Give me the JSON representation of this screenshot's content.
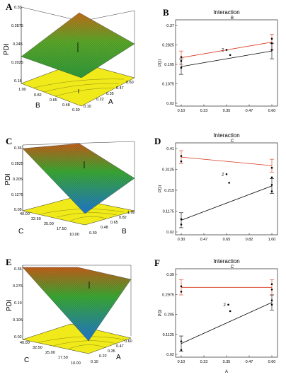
{
  "colors": {
    "surface_high": "#c2701a",
    "surface_mid": "#3aa833",
    "surface_low": "#1f78d0",
    "floor": "#f0ea1a",
    "red_line": "#d9381e",
    "black_line": "#000000"
  },
  "panels3d": [
    {
      "letter": "A",
      "zlabel": "PDI",
      "xlabel": "A",
      "ylabel": "B",
      "zticks": [
        "0.33",
        "0.2875",
        "0.245",
        "0.2025",
        "0.16"
      ],
      "xticks": [
        "0.60",
        "0.47",
        "0.35",
        "0.22",
        "0.10"
      ],
      "yticks": [
        "1.00",
        "0.82",
        "0.65",
        "0.48",
        "0.30"
      ]
    },
    {
      "letter": "C",
      "zlabel": "PDI",
      "xlabel": "B",
      "ylabel": "C",
      "zticks": [
        "0.36",
        "0.2825",
        "0.205",
        "0.1275",
        "0.05"
      ],
      "xticks": [
        "1.00",
        "0.82",
        "0.65",
        "0.48",
        "0.30"
      ],
      "yticks": [
        "40.00",
        "32.50",
        "25.00",
        "17.50",
        "10.00"
      ]
    },
    {
      "letter": "E",
      "zlabel": "PDI",
      "xlabel": "A",
      "ylabel": "C",
      "zticks": [
        "0.36",
        "0.275",
        "0.19",
        "0.105",
        "0.02"
      ],
      "xticks": [
        "0.60",
        "0.47",
        "0.35",
        "0.22",
        "0.10"
      ],
      "yticks": [
        "40.00",
        "32.50",
        "25.00",
        "17.50",
        "10.00"
      ]
    }
  ],
  "chart_data": [
    {
      "panel": "B",
      "type": "line",
      "title": "Interaction",
      "subtitle": "B",
      "ylabel": "PDI",
      "xlabel": "",
      "x_ticks": [
        "0.10",
        "0.23",
        "0.35",
        "0.47",
        "0.60"
      ],
      "y_ticks": [
        "0.02",
        "0.1075",
        "0.195",
        "0.2825",
        "0.37"
      ],
      "xlim": [
        0.1,
        0.6
      ],
      "ylim": [
        0.02,
        0.37
      ],
      "annotation": "2",
      "series": [
        {
          "color": "#d9381e",
          "x": [
            0.1,
            0.6
          ],
          "y": [
            0.225,
            0.295
          ],
          "err": [
            0.03,
            0.035
          ]
        },
        {
          "color": "#000000",
          "x": [
            0.1,
            0.6
          ],
          "y": [
            0.185,
            0.255
          ],
          "err": [
            0.035,
            0.035
          ]
        }
      ],
      "points": [
        {
          "x": 0.1,
          "y": 0.228
        },
        {
          "x": 0.1,
          "y": 0.21
        },
        {
          "x": 0.1,
          "y": 0.18
        },
        {
          "x": 0.35,
          "y": 0.26
        },
        {
          "x": 0.37,
          "y": 0.237
        },
        {
          "x": 0.6,
          "y": 0.31
        },
        {
          "x": 0.6,
          "y": 0.29
        },
        {
          "x": 0.6,
          "y": 0.26
        }
      ]
    },
    {
      "panel": "D",
      "type": "line",
      "title": "Interaction",
      "subtitle": "C",
      "ylabel": "PDI",
      "xlabel": "",
      "x_ticks": [
        "0.30",
        "0.47",
        "0.65",
        "0.82",
        "1.00"
      ],
      "y_ticks": [
        "0.02",
        "0.1175",
        "0.215",
        "0.3125",
        "0.41"
      ],
      "xlim": [
        0.3,
        1.0
      ],
      "ylim": [
        0.02,
        0.41
      ],
      "annotation": "2",
      "series": [
        {
          "color": "#d9381e",
          "x": [
            0.3,
            1.0
          ],
          "y": [
            0.37,
            0.33
          ],
          "err": [
            0.03,
            0.03
          ]
        },
        {
          "color": "#000000",
          "x": [
            0.3,
            1.0
          ],
          "y": [
            0.075,
            0.235
          ],
          "err": [
            0.035,
            0.035
          ]
        }
      ],
      "points": [
        {
          "x": 0.3,
          "y": 0.375
        },
        {
          "x": 0.3,
          "y": 0.35
        },
        {
          "x": 0.3,
          "y": 0.08
        },
        {
          "x": 0.3,
          "y": 0.055
        },
        {
          "x": 0.65,
          "y": 0.29
        },
        {
          "x": 0.67,
          "y": 0.25
        },
        {
          "x": 1.0,
          "y": 0.32
        },
        {
          "x": 1.0,
          "y": 0.275
        },
        {
          "x": 1.0,
          "y": 0.24
        },
        {
          "x": 1.0,
          "y": 0.21
        }
      ]
    },
    {
      "panel": "F",
      "type": "line",
      "title": "Interaction",
      "subtitle": "C",
      "ylabel": "PDI",
      "xlabel": "A",
      "x_ticks": [
        "0.10",
        "0.23",
        "0.35",
        "0.47",
        "0.60"
      ],
      "y_ticks": [
        "0.02",
        "0.1125",
        "0.205",
        "0.2975",
        "0.39"
      ],
      "xlim": [
        0.1,
        0.6
      ],
      "ylim": [
        0.02,
        0.39
      ],
      "annotation": "2",
      "series": [
        {
          "color": "#d9381e",
          "x": [
            0.1,
            0.6
          ],
          "y": [
            0.33,
            0.33
          ],
          "err": [
            0.035,
            0.035
          ]
        },
        {
          "color": "#000000",
          "x": [
            0.1,
            0.6
          ],
          "y": [
            0.07,
            0.26
          ],
          "err": [
            0.035,
            0.035
          ]
        }
      ],
      "points": [
        {
          "x": 0.1,
          "y": 0.335
        },
        {
          "x": 0.1,
          "y": 0.31
        },
        {
          "x": 0.1,
          "y": 0.08
        },
        {
          "x": 0.1,
          "y": 0.04
        },
        {
          "x": 0.36,
          "y": 0.25
        },
        {
          "x": 0.37,
          "y": 0.22
        },
        {
          "x": 0.6,
          "y": 0.345
        },
        {
          "x": 0.6,
          "y": 0.32
        },
        {
          "x": 0.6,
          "y": 0.27
        },
        {
          "x": 0.6,
          "y": 0.25
        }
      ]
    }
  ]
}
